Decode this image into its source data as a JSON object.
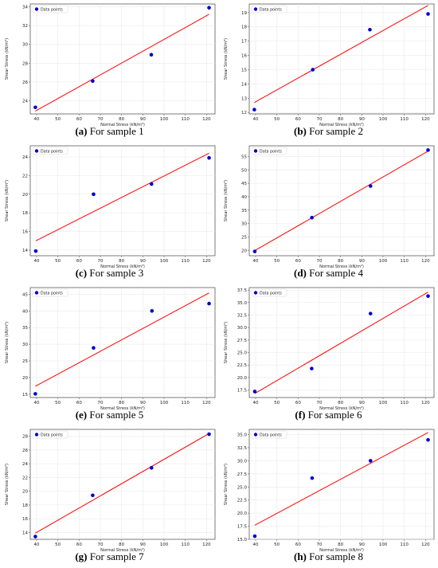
{
  "chart_data": [
    {
      "type": "scatter",
      "caption_letter": "(a)",
      "caption_text": " For sample 1",
      "xlabel": "Normal Stress (kN/m²)",
      "ylabel": "Shear Stress (kN/m²)",
      "xlim": [
        37,
        124
      ],
      "ylim": [
        22.6,
        34.3
      ],
      "xticks": [
        "40",
        "50",
        "60",
        "70",
        "80",
        "90",
        "100",
        "110",
        "120"
      ],
      "yticks": [
        "24",
        "26",
        "28",
        "30",
        "32",
        "34"
      ],
      "legend": "Data points",
      "legend_position": "top-left",
      "grid": true,
      "point_color": "#0000cc",
      "line_color": "#ff0000",
      "points": [
        [
          39.4,
          23.3
        ],
        [
          66.4,
          26.1
        ],
        [
          94.0,
          28.9
        ],
        [
          121.2,
          33.9
        ]
      ],
      "fit_line": [
        [
          39.4,
          22.9
        ],
        [
          121.2,
          33.2
        ]
      ]
    },
    {
      "type": "scatter",
      "caption_letter": "(b)",
      "caption_text": " For sample 2",
      "xlabel": "Normal Stress (kN/m²)",
      "ylabel": "Shear Stress (kN/m²)",
      "xlim": [
        37,
        124
      ],
      "ylim": [
        11.9,
        19.6
      ],
      "xticks": [
        "40",
        "50",
        "60",
        "70",
        "80",
        "90",
        "100",
        "110",
        "120"
      ],
      "yticks": [
        "12",
        "13",
        "14",
        "15",
        "16",
        "17",
        "18",
        "19"
      ],
      "legend": "Data points",
      "legend_position": "top-left",
      "grid": true,
      "point_color": "#0000cc",
      "line_color": "#ff0000",
      "points": [
        [
          39.4,
          12.2
        ],
        [
          66.9,
          15.0
        ],
        [
          93.8,
          17.8
        ],
        [
          121.2,
          18.9
        ]
      ],
      "fit_line": [
        [
          39.4,
          12.7
        ],
        [
          121.2,
          19.5
        ]
      ]
    },
    {
      "type": "scatter",
      "caption_letter": "(c)",
      "caption_text": " For sample 3",
      "xlabel": "Normal Stress (kN/m²)",
      "ylabel": "Shear Stress (kN/m²)",
      "xlim": [
        37,
        124
      ],
      "ylim": [
        13.4,
        25.2
      ],
      "xticks": [
        "40",
        "50",
        "60",
        "70",
        "80",
        "90",
        "100",
        "110",
        "120"
      ],
      "yticks": [
        "14",
        "16",
        "18",
        "20",
        "22",
        "24"
      ],
      "legend": "Data points",
      "legend_position": "top-left",
      "grid": true,
      "point_color": "#0000cc",
      "line_color": "#ff0000",
      "points": [
        [
          39.6,
          13.9
        ],
        [
          66.8,
          20.0
        ],
        [
          94.1,
          21.1
        ],
        [
          121.2,
          23.9
        ]
      ],
      "fit_line": [
        [
          39.6,
          15.0
        ],
        [
          121.2,
          24.4
        ]
      ]
    },
    {
      "type": "scatter",
      "caption_letter": "(d)",
      "caption_text": " For sample 4",
      "xlabel": "Normal Stress (kN/m²)",
      "ylabel": "Shear Stress (kN/m²)",
      "xlim": [
        37,
        124
      ],
      "ylim": [
        18,
        59
      ],
      "xticks": [
        "40",
        "50",
        "60",
        "70",
        "80",
        "90",
        "100",
        "110",
        "120"
      ],
      "yticks": [
        "20",
        "25",
        "30",
        "35",
        "40",
        "45",
        "50",
        "55"
      ],
      "legend": "Data points",
      "legend_position": "top-left",
      "grid": true,
      "point_color": "#0000cc",
      "line_color": "#ff0000",
      "points": [
        [
          39.6,
          19.6
        ],
        [
          66.5,
          32.2
        ],
        [
          94.1,
          44.0
        ],
        [
          121.2,
          57.4
        ]
      ],
      "fit_line": [
        [
          39.6,
          19.9
        ],
        [
          121.2,
          57.0
        ]
      ]
    },
    {
      "type": "scatter",
      "caption_letter": "(e)",
      "caption_text": " For sample 5",
      "xlabel": "Normal Stress (kN/m²)",
      "ylabel": "Shear Stress (kN/m²)",
      "xlim": [
        37,
        124
      ],
      "ylim": [
        14,
        47
      ],
      "xticks": [
        "40",
        "50",
        "60",
        "70",
        "80",
        "90",
        "100",
        "110",
        "120"
      ],
      "yticks": [
        "15",
        "20",
        "25",
        "30",
        "35",
        "40",
        "45"
      ],
      "legend": "Data points",
      "legend_position": "top-left",
      "grid": true,
      "point_color": "#0000cc",
      "line_color": "#ff0000",
      "points": [
        [
          39.4,
          15.1
        ],
        [
          66.8,
          28.9
        ],
        [
          94.3,
          40.0
        ],
        [
          121.2,
          42.2
        ]
      ],
      "fit_line": [
        [
          39.4,
          17.4
        ],
        [
          121.2,
          45.4
        ]
      ]
    },
    {
      "type": "scatter",
      "caption_letter": "(f)",
      "caption_text": " For sample 6",
      "xlabel": "Normal Stress (kN/m²)",
      "ylabel": "Shear Stress (kN/m²)",
      "xlim": [
        37,
        124
      ],
      "ylim": [
        16,
        38
      ],
      "xticks": [
        "40",
        "50",
        "60",
        "70",
        "80",
        "90",
        "100",
        "110",
        "120"
      ],
      "yticks": [
        "17.5",
        "20.0",
        "22.5",
        "25.0",
        "27.5",
        "30.0",
        "32.5",
        "35.0",
        "37.5"
      ],
      "legend": "Data points",
      "legend_position": "top-left",
      "grid": true,
      "point_color": "#0000cc",
      "line_color": "#ff0000",
      "points": [
        [
          39.6,
          17.2
        ],
        [
          66.4,
          21.8
        ],
        [
          94.1,
          32.8
        ],
        [
          121.2,
          36.3
        ]
      ],
      "fit_line": [
        [
          39.6,
          16.8
        ],
        [
          121.2,
          37.1
        ]
      ]
    },
    {
      "type": "scatter",
      "caption_letter": "(g)",
      "caption_text": " For sample 7",
      "xlabel": "Normal Stress (kN/m²)",
      "ylabel": "Shear Stress (kN/m²)",
      "xlim": [
        37,
        124
      ],
      "ylim": [
        13,
        29
      ],
      "xticks": [
        "40",
        "50",
        "60",
        "70",
        "80",
        "90",
        "100",
        "110",
        "120"
      ],
      "yticks": [
        "14",
        "16",
        "18",
        "20",
        "22",
        "24",
        "26",
        "28"
      ],
      "legend": "Data points",
      "legend_position": "top-left",
      "grid": true,
      "point_color": "#0000cc",
      "line_color": "#ff0000",
      "points": [
        [
          39.4,
          13.4
        ],
        [
          66.4,
          19.4
        ],
        [
          94.1,
          23.4
        ],
        [
          121.2,
          28.3
        ]
      ],
      "fit_line": [
        [
          39.4,
          13.9
        ],
        [
          121.2,
          28.4
        ]
      ]
    },
    {
      "type": "scatter",
      "caption_letter": "(h)",
      "caption_text": " For sample 8",
      "xlabel": "Normal Stress (kN/m²)",
      "ylabel": "Shear Stress (kN/m²)",
      "xlim": [
        37,
        124
      ],
      "ylim": [
        15,
        36
      ],
      "xticks": [
        "40",
        "50",
        "60",
        "70",
        "80",
        "90",
        "100",
        "110",
        "120"
      ],
      "yticks": [
        "15.0",
        "17.5",
        "20.0",
        "22.5",
        "25.0",
        "27.5",
        "30.0",
        "32.5",
        "35.0"
      ],
      "legend": "Data points",
      "legend_position": "top-left",
      "grid": true,
      "point_color": "#0000cc",
      "line_color": "#ff0000",
      "points": [
        [
          39.6,
          15.6
        ],
        [
          66.6,
          26.7
        ],
        [
          94.1,
          30.0
        ],
        [
          121.2,
          34.0
        ]
      ],
      "fit_line": [
        [
          39.6,
          17.7
        ],
        [
          121.2,
          35.4
        ]
      ]
    }
  ]
}
